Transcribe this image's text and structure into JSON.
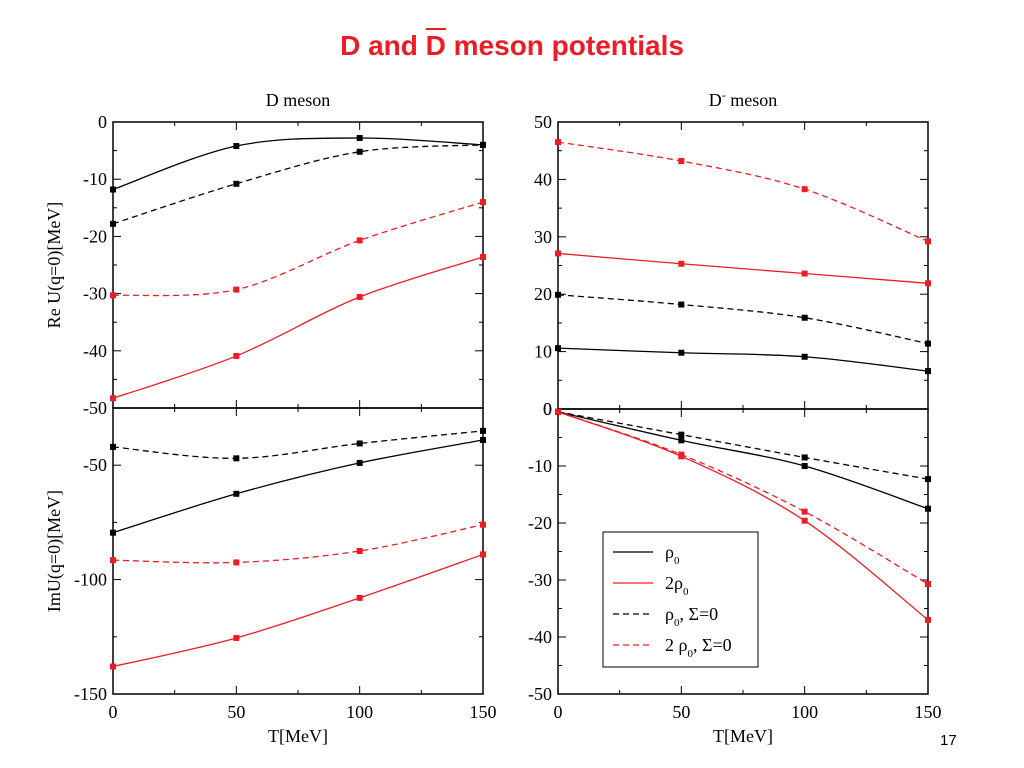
{
  "slide": {
    "title_prefix": "D and ",
    "title_bar": "D",
    "title_suffix": " meson potentials",
    "page_number": "17"
  },
  "colors": {
    "title": "#ee1c25",
    "black_series": "#000000",
    "red_series": "#ee1c25"
  },
  "chart_data": [
    {
      "type": "line",
      "title": "D meson",
      "xlabel": "",
      "ylabel": "Re U(q=0)[MeV]",
      "xlim": [
        0,
        150
      ],
      "ylim": [
        -50,
        0
      ],
      "yticks": [
        "0",
        "-10",
        "-20",
        "-30",
        "-40",
        "-50"
      ],
      "xticks": [],
      "series": [
        {
          "name": "ρ0",
          "style": "solid",
          "color": "#000000",
          "x": [
            0,
            50,
            100,
            150
          ],
          "y": [
            -11.8,
            -4.2,
            -2.8,
            -4.0
          ]
        },
        {
          "name": "2ρ0",
          "style": "solid",
          "color": "#ee1c25",
          "x": [
            0,
            50,
            100,
            150
          ],
          "y": [
            -48.3,
            -40.9,
            -30.6,
            -23.6
          ]
        },
        {
          "name": "ρ0, Σ=0",
          "style": "dashed",
          "color": "#000000",
          "x": [
            0,
            50,
            100,
            150
          ],
          "y": [
            -17.8,
            -10.8,
            -5.2,
            -4.0
          ]
        },
        {
          "name": "2 ρ0, Σ=0",
          "style": "dashed",
          "color": "#ee1c25",
          "x": [
            0,
            50,
            100,
            150
          ],
          "y": [
            -30.3,
            -29.3,
            -20.7,
            -14.0
          ]
        }
      ]
    },
    {
      "type": "line",
      "title": "D¯ meson",
      "xlabel": "",
      "ylabel": "",
      "xlim": [
        0,
        150
      ],
      "ylim": [
        0,
        50
      ],
      "yticks": [
        "50",
        "40",
        "30",
        "20",
        "10",
        "0"
      ],
      "xticks": [],
      "series": [
        {
          "name": "ρ0",
          "style": "solid",
          "color": "#000000",
          "x": [
            0,
            50,
            100,
            150
          ],
          "y": [
            10.6,
            9.8,
            9.1,
            6.6
          ]
        },
        {
          "name": "2ρ0",
          "style": "solid",
          "color": "#ee1c25",
          "x": [
            0,
            50,
            100,
            150
          ],
          "y": [
            27.1,
            25.3,
            23.6,
            21.9
          ]
        },
        {
          "name": "ρ0, Σ=0",
          "style": "dashed",
          "color": "#000000",
          "x": [
            0,
            50,
            100,
            150
          ],
          "y": [
            19.9,
            18.2,
            15.9,
            11.4
          ]
        },
        {
          "name": "2 ρ0, Σ=0",
          "style": "dashed",
          "color": "#ee1c25",
          "x": [
            0,
            50,
            100,
            150
          ],
          "y": [
            46.5,
            43.2,
            38.3,
            29.2
          ]
        }
      ]
    },
    {
      "type": "line",
      "title": "",
      "xlabel": "T[MeV]",
      "ylabel": "ImU(q=0)[MeV]",
      "xlim": [
        0,
        150
      ],
      "ylim": [
        -150,
        -25
      ],
      "yticks": [
        "-50",
        "-100",
        "-150"
      ],
      "xticks": [
        "0",
        "50",
        "100",
        "150"
      ],
      "series": [
        {
          "name": "ρ0",
          "style": "solid",
          "color": "#000000",
          "x": [
            0,
            50,
            100,
            150
          ],
          "y": [
            -79.5,
            -62.5,
            -49.0,
            -39.0
          ]
        },
        {
          "name": "2ρ0",
          "style": "solid",
          "color": "#ee1c25",
          "x": [
            0,
            50,
            100,
            150
          ],
          "y": [
            -138.0,
            -125.5,
            -108.0,
            -89.0
          ]
        },
        {
          "name": "ρ0, Σ=0",
          "style": "dashed",
          "color": "#000000",
          "x": [
            0,
            50,
            100,
            150
          ],
          "y": [
            -42.0,
            -47.0,
            -40.5,
            -35.0
          ]
        },
        {
          "name": "2 ρ0, Σ=0",
          "style": "dashed",
          "color": "#ee1c25",
          "x": [
            0,
            50,
            100,
            150
          ],
          "y": [
            -91.5,
            -92.5,
            -87.5,
            -76.0
          ]
        }
      ]
    },
    {
      "type": "line",
      "title": "",
      "xlabel": "T[MeV]",
      "ylabel": "",
      "xlim": [
        0,
        150
      ],
      "ylim": [
        -50,
        0
      ],
      "yticks": [
        "0",
        "-10",
        "-20",
        "-30",
        "-40",
        "-50"
      ],
      "xticks": [
        "0",
        "50",
        "100",
        "150"
      ],
      "series": [
        {
          "name": "ρ0",
          "style": "solid",
          "color": "#000000",
          "x": [
            0,
            50,
            100,
            150
          ],
          "y": [
            -0.5,
            -5.5,
            -10.0,
            -17.5
          ]
        },
        {
          "name": "2ρ0",
          "style": "solid",
          "color": "#ee1c25",
          "x": [
            0,
            50,
            100,
            150
          ],
          "y": [
            -0.5,
            -8.3,
            -19.6,
            -37.0
          ]
        },
        {
          "name": "ρ0, Σ=0",
          "style": "dashed",
          "color": "#000000",
          "x": [
            0,
            50,
            100,
            150
          ],
          "y": [
            -0.5,
            -4.5,
            -8.5,
            -12.3
          ]
        },
        {
          "name": "2 ρ0, Σ=0",
          "style": "dashed",
          "color": "#ee1c25",
          "x": [
            0,
            50,
            100,
            150
          ],
          "y": [
            -0.5,
            -8.0,
            -18.0,
            -30.7
          ]
        }
      ],
      "legend": {
        "placement": "bottom-left",
        "entries": [
          {
            "label": "ρ0",
            "style": "solid",
            "color": "#000000"
          },
          {
            "label": "2ρ0",
            "style": "solid",
            "color": "#ee1c25"
          },
          {
            "label": "ρ0, Σ=0",
            "style": "dashed",
            "color": "#000000"
          },
          {
            "label": "2 ρ0, Σ=0",
            "style": "dashed",
            "color": "#ee1c25"
          }
        ]
      }
    }
  ]
}
